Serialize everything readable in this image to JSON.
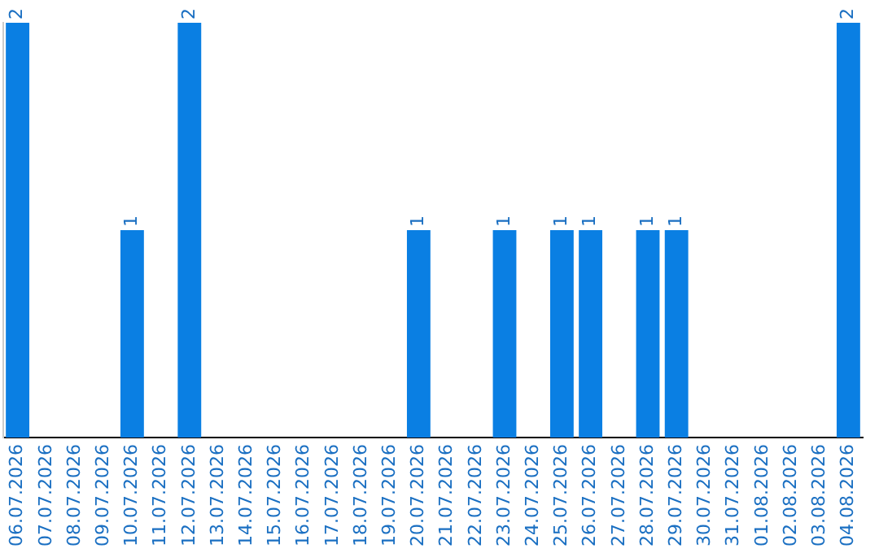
{
  "chart_data": {
    "type": "bar",
    "categories": [
      "06.07.2026",
      "07.07.2026",
      "08.07.2026",
      "09.07.2026",
      "10.07.2026",
      "11.07.2026",
      "12.07.2026",
      "13.07.2026",
      "14.07.2026",
      "15.07.2026",
      "16.07.2026",
      "17.07.2026",
      "18.07.2026",
      "19.07.2026",
      "20.07.2026",
      "21.07.2026",
      "22.07.2026",
      "23.07.2026",
      "24.07.2026",
      "25.07.2026",
      "26.07.2026",
      "27.07.2026",
      "28.07.2026",
      "29.07.2026",
      "30.07.2026",
      "31.07.2026",
      "01.08.2026",
      "02.08.2026",
      "03.08.2026",
      "04.08.2026"
    ],
    "values": [
      2,
      0,
      0,
      0,
      1,
      0,
      2,
      0,
      0,
      0,
      0,
      0,
      0,
      0,
      1,
      0,
      0,
      1,
      0,
      1,
      1,
      0,
      1,
      1,
      0,
      0,
      0,
      0,
      0,
      2
    ],
    "color": "#0a7fe3",
    "ylim": [
      0,
      2
    ],
    "value_labels": [
      "2",
      null,
      null,
      null,
      "1",
      null,
      "2",
      null,
      null,
      null,
      null,
      null,
      null,
      null,
      "1",
      null,
      null,
      "1",
      null,
      "1",
      "1",
      null,
      "1",
      "1",
      null,
      null,
      null,
      null,
      null,
      "2"
    ],
    "tick_labels": "x",
    "grid": false,
    "legend": false
  }
}
